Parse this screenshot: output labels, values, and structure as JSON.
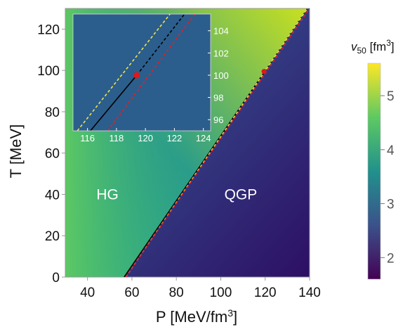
{
  "chart_data": {
    "type": "heatmap",
    "title": "",
    "xlabel": "P  [MeV/fm",
    "xlabel_sup": "3",
    "xlabel_close": "]",
    "ylabel": "T [MeV]",
    "xlim": [
      30,
      140
    ],
    "ylim": [
      0,
      130
    ],
    "x_ticks": [
      40,
      60,
      80,
      100,
      120,
      140
    ],
    "y_ticks": [
      0,
      20,
      40,
      60,
      80,
      100,
      120
    ],
    "grid": false,
    "regions": [
      {
        "label": "HG",
        "x": 49,
        "y": 40
      },
      {
        "label": "QGP",
        "x": 109,
        "y": 40
      }
    ],
    "boundary_lines": [
      {
        "name": "",
        "color": "#000000",
        "style": "solid",
        "points": [
          [
            56.5,
            0
          ],
          [
            119.5,
            99
          ]
        ]
      },
      {
        "name": "",
        "color": "#000000",
        "style": "dashed",
        "points": [
          [
            119.5,
            99
          ],
          [
            139,
            130
          ]
        ]
      },
      {
        "name": "",
        "color": "#f0e24a",
        "style": "dashed",
        "points": [
          [
            57.3,
            0
          ],
          [
            139,
            130
          ]
        ]
      },
      {
        "name": "",
        "color": "#e0202a",
        "style": "dashed",
        "points": [
          [
            57.3,
            0
          ],
          [
            140,
            130
          ]
        ]
      }
    ],
    "critical_point": {
      "x": 119.5,
      "y": 99.5,
      "color": "#e01818"
    },
    "colorbar": {
      "label": "v",
      "label_sub": "50",
      "label_unit": " [fm",
      "label_sup": "3",
      "label_close": "]",
      "range": [
        1.6,
        5.6
      ],
      "ticks": [
        2,
        3,
        4,
        5
      ],
      "colors": [
        "#440154",
        "#3b528b",
        "#21918c",
        "#5ec962",
        "#fde725"
      ]
    },
    "inset": {
      "xlim": [
        115,
        124.5
      ],
      "ylim": [
        95,
        105.5
      ],
      "x_ticks": [
        116,
        118,
        120,
        122,
        124
      ],
      "y_ticks": [
        96,
        98,
        100,
        102,
        104
      ],
      "lines": [
        {
          "name": "",
          "color": "#000000",
          "style": "solid",
          "points": [
            [
              116.2,
              95
            ],
            [
              119.4,
              100
            ]
          ]
        },
        {
          "name": "",
          "color": "#000000",
          "style": "dashed",
          "points": [
            [
              119.4,
              100
            ],
            [
              122.7,
              105.5
            ]
          ]
        },
        {
          "name": "",
          "color": "#f0e24a",
          "style": "dashed",
          "points": [
            [
              115.3,
              95
            ],
            [
              121.7,
              105.5
            ]
          ]
        },
        {
          "name": "",
          "color": "#e0202a",
          "style": "dashed",
          "points": [
            [
              117.4,
              95
            ],
            [
              123.4,
              105.5
            ]
          ]
        }
      ],
      "critical_point": {
        "x": 119.4,
        "y": 100
      }
    }
  }
}
